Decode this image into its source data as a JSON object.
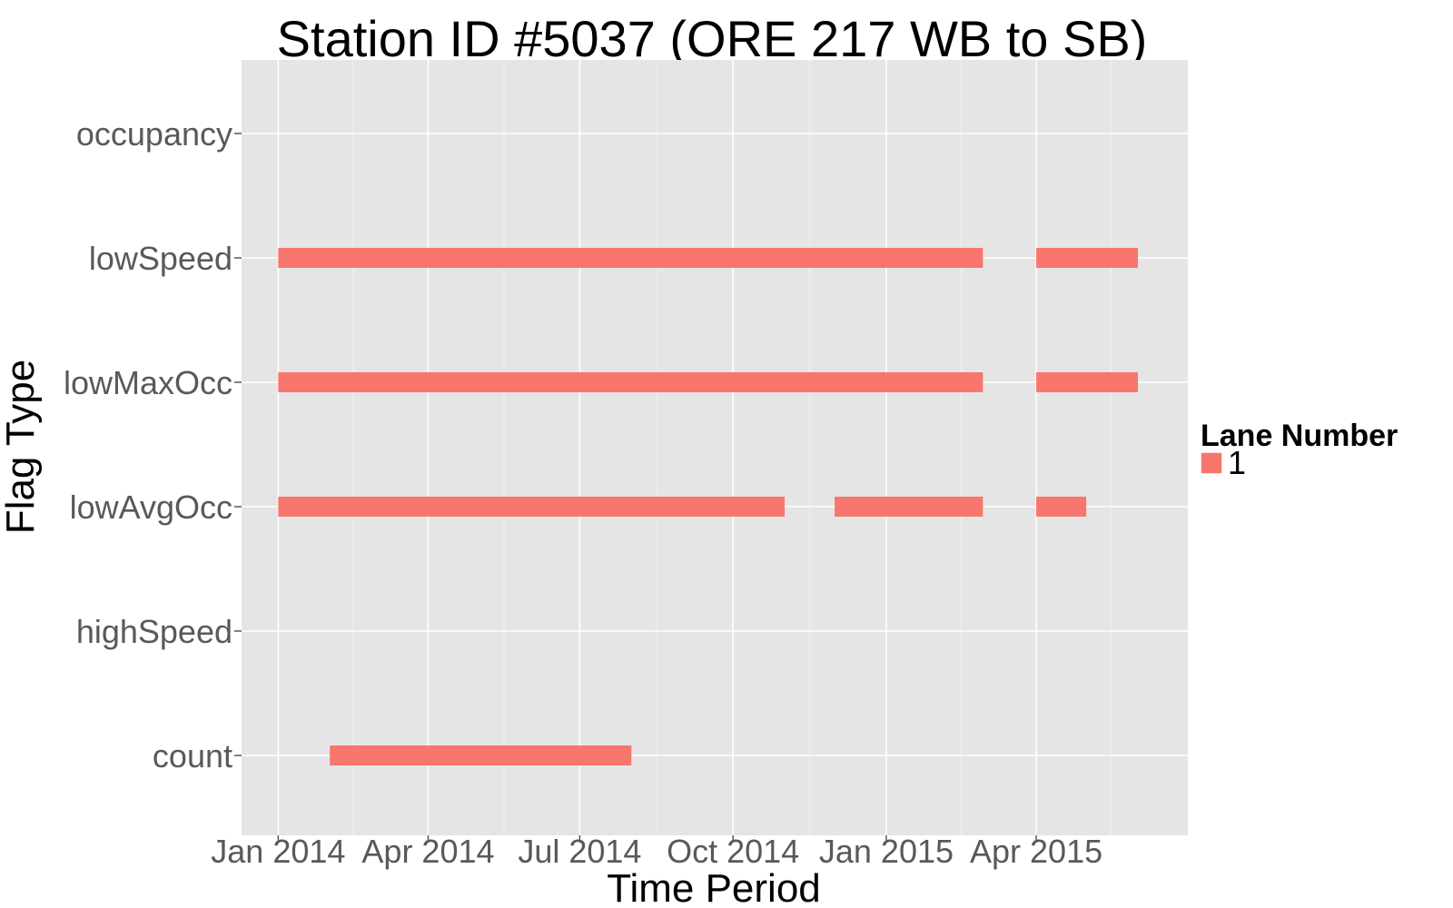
{
  "chart_data": {
    "type": "timeline",
    "title": "Station ID #5037 (ORE 217 WB to SB)",
    "xlabel": "Time Period",
    "ylabel": "Flag Type",
    "x_axis": {
      "type": "date",
      "range": [
        "2013-12-10",
        "2015-07-01"
      ],
      "ticks": [
        {
          "date": "2014-01-01",
          "label": "Jan 2014"
        },
        {
          "date": "2014-04-01",
          "label": "Apr 2014"
        },
        {
          "date": "2014-07-01",
          "label": "Jul 2014"
        },
        {
          "date": "2014-10-01",
          "label": "Oct 2014"
        },
        {
          "date": "2015-01-01",
          "label": "Jan 2015"
        },
        {
          "date": "2015-04-01",
          "label": "Apr 2015"
        }
      ]
    },
    "categories": [
      "occupancy",
      "lowSpeed",
      "lowMaxOcc",
      "lowAvgOcc",
      "highSpeed",
      "count"
    ],
    "grid": true,
    "legend": {
      "title": "Lane Number",
      "position": "right",
      "entries": [
        {
          "label": "1",
          "color": "#F8766D"
        }
      ]
    },
    "series": [
      {
        "name": "1",
        "color": "#F8766D",
        "segments": [
          {
            "category": "lowSpeed",
            "start": "2014-01-01",
            "end": "2015-02-28"
          },
          {
            "category": "lowSpeed",
            "start": "2015-04-01",
            "end": "2015-06-01"
          },
          {
            "category": "lowMaxOcc",
            "start": "2014-01-01",
            "end": "2015-02-28"
          },
          {
            "category": "lowMaxOcc",
            "start": "2015-04-01",
            "end": "2015-06-01"
          },
          {
            "category": "lowAvgOcc",
            "start": "2014-01-01",
            "end": "2014-11-01"
          },
          {
            "category": "lowAvgOcc",
            "start": "2014-12-01",
            "end": "2015-02-28"
          },
          {
            "category": "lowAvgOcc",
            "start": "2015-04-01",
            "end": "2015-05-01"
          },
          {
            "category": "count",
            "start": "2014-02-01",
            "end": "2014-08-01"
          }
        ]
      }
    ]
  }
}
